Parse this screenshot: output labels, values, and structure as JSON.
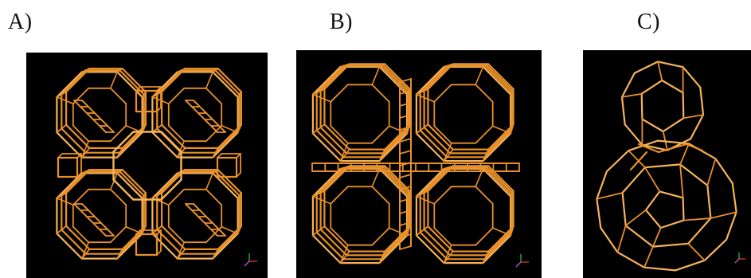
{
  "figure": {
    "panels": [
      {
        "label": "A)"
      },
      {
        "label": "B)"
      },
      {
        "label": "C)"
      }
    ],
    "colors": {
      "background": "#ffffff",
      "panel_background": "#000000",
      "framework_bond": "#e8902a",
      "framework_highlight": "#f6b35a",
      "axis_x": "#cc3333",
      "axis_y": "#33aa33",
      "axis_z": "#aa55cc"
    }
  }
}
